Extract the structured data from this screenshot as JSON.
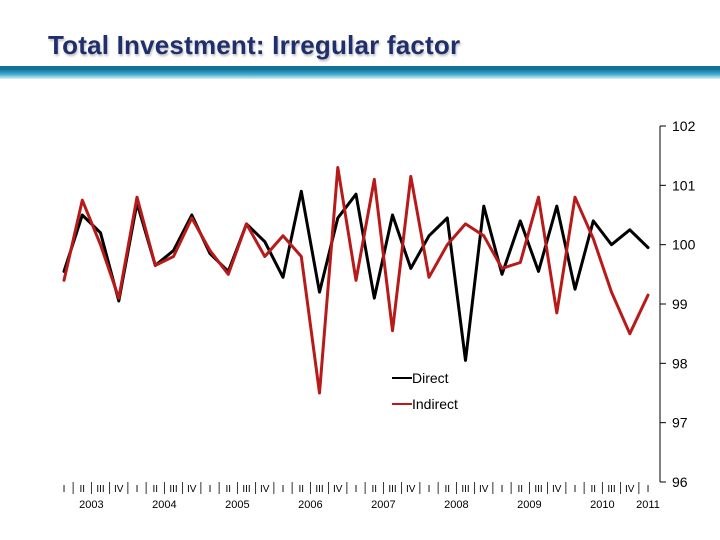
{
  "slide": {
    "title": "Total Investment: Irregular factor"
  },
  "colors": {
    "title": "#1f2f6b",
    "rule_dark": "#1a8ab0",
    "rule_light": "#d4eef6",
    "direct": "#000000",
    "indirect": "#b81a1a"
  },
  "chart_data": {
    "type": "line",
    "title": "",
    "xlabel": "",
    "ylabel": "",
    "ylim": [
      96,
      102
    ],
    "yticks": [
      "96",
      "97",
      "98",
      "99",
      "100",
      "101",
      "102"
    ],
    "y_axis_side": "right",
    "grid": false,
    "legend_position": "center",
    "quarter_labels": [
      "I",
      "II",
      "III",
      "IV",
      "I",
      "II",
      "III",
      "IV",
      "I",
      "II",
      "III",
      "IV",
      "I",
      "II",
      "III",
      "IV",
      "I",
      "II",
      "III",
      "IV",
      "I",
      "II",
      "III",
      "IV",
      "I",
      "II",
      "III",
      "IV",
      "I",
      "II",
      "III",
      "IV",
      "I"
    ],
    "year_labels": [
      {
        "label": "2003",
        "first_quarter_index": 0
      },
      {
        "label": "2004",
        "first_quarter_index": 4
      },
      {
        "label": "2005",
        "first_quarter_index": 8
      },
      {
        "label": "2006",
        "first_quarter_index": 12
      },
      {
        "label": "2007",
        "first_quarter_index": 16
      },
      {
        "label": "2008",
        "first_quarter_index": 20
      },
      {
        "label": "2009",
        "first_quarter_index": 24
      },
      {
        "label": "2010",
        "first_quarter_index": 28
      },
      {
        "label": "2011",
        "first_quarter_index": 32
      }
    ],
    "series": [
      {
        "name": "Direct",
        "color": "#000000",
        "values": [
          99.55,
          100.5,
          100.2,
          99.05,
          100.7,
          99.65,
          99.9,
          100.5,
          99.85,
          99.55,
          100.35,
          100.05,
          99.45,
          100.9,
          99.2,
          100.45,
          100.85,
          99.1,
          100.5,
          99.6,
          100.15,
          100.45,
          98.05,
          100.65,
          99.5,
          100.4,
          99.55,
          100.65,
          99.25,
          100.4,
          100.0,
          100.25,
          99.95
        ]
      },
      {
        "name": "Indirect",
        "color": "#b81a1a",
        "values": [
          99.4,
          100.75,
          100.0,
          99.1,
          100.8,
          99.65,
          99.8,
          100.45,
          99.9,
          99.5,
          100.35,
          99.8,
          100.15,
          99.8,
          97.5,
          101.3,
          99.4,
          101.1,
          98.55,
          101.15,
          99.45,
          100.0,
          100.35,
          100.15,
          99.6,
          99.7,
          100.8,
          98.85,
          100.8,
          100.1,
          99.2,
          98.5,
          99.15
        ]
      }
    ]
  }
}
